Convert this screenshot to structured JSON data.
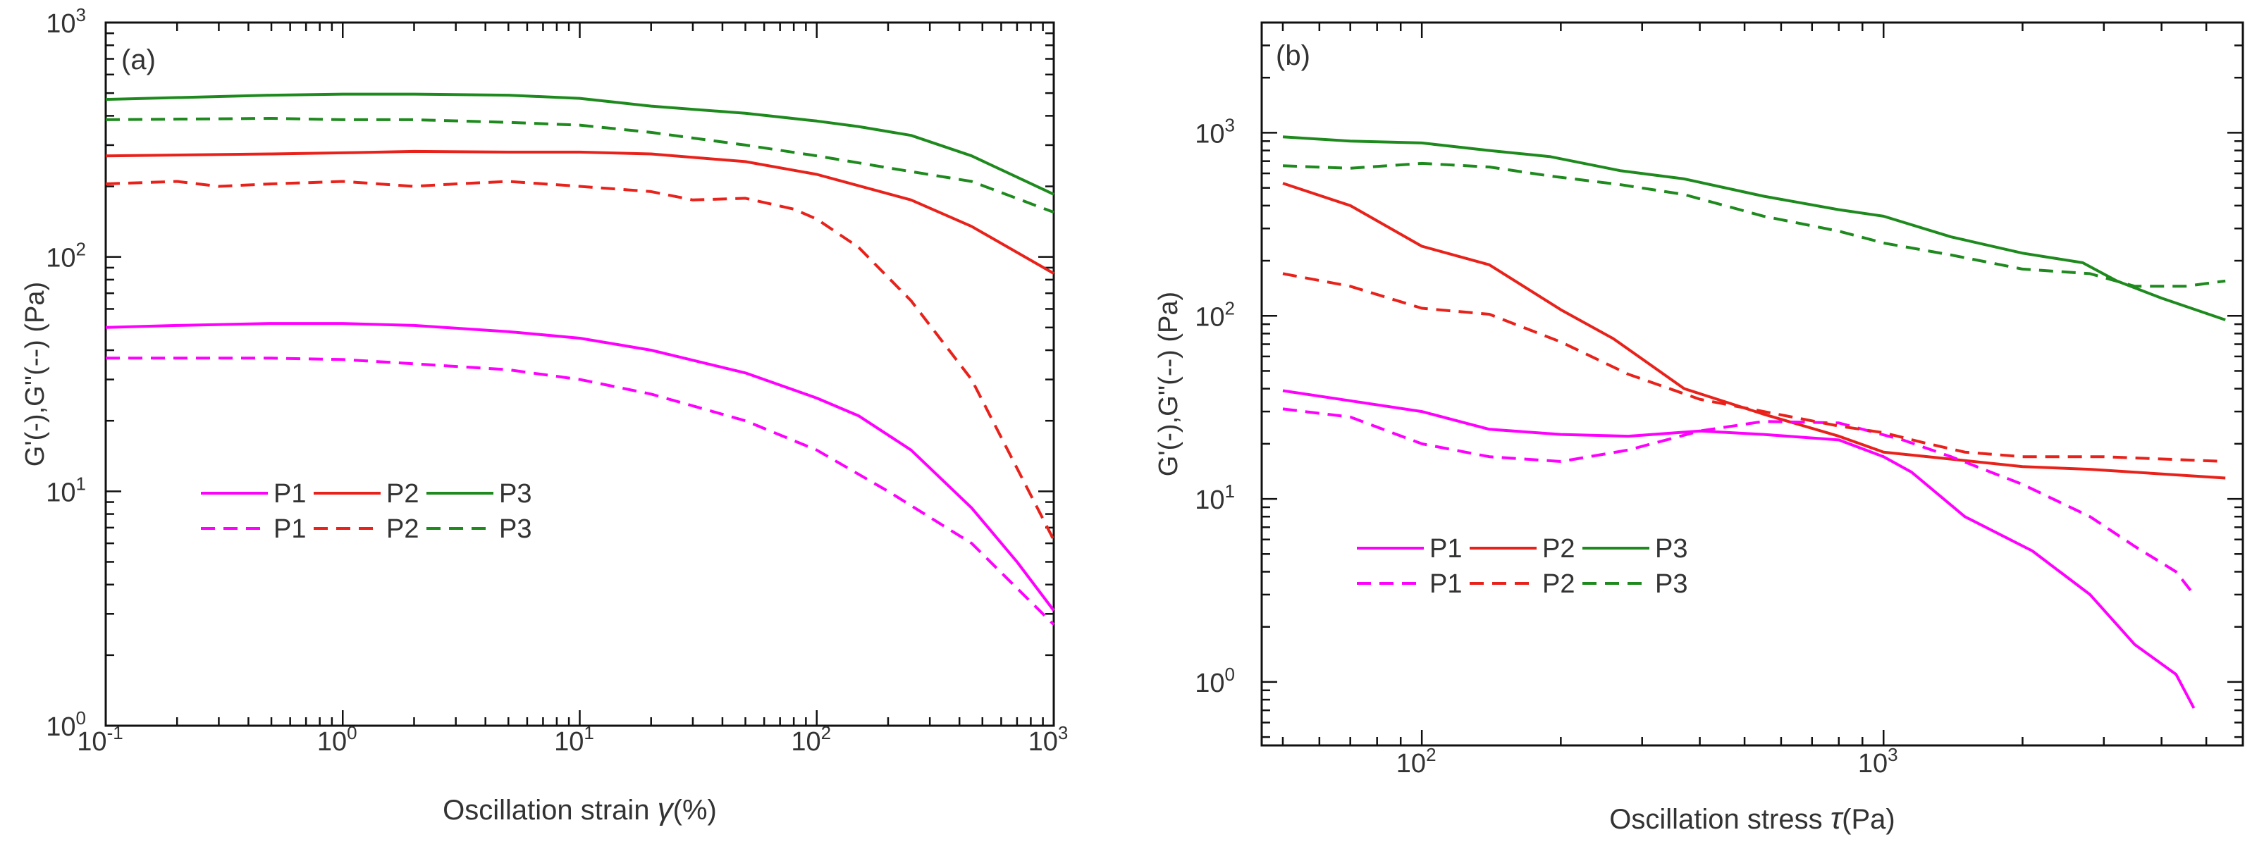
{
  "chart_data": [
    {
      "type": "line",
      "panel_label": "(a)",
      "xlabel_prefix": "Oscillation strain ",
      "xlabel_symbol": "γ",
      "xlabel_suffix": "(%)",
      "ylabel": "G'(-),G''(--) (Pa)",
      "x_scale": "log",
      "y_scale": "log",
      "xlim": [
        0.1,
        1000
      ],
      "ylim": [
        1,
        1000
      ],
      "x_ticks": [
        {
          "value": 0.1,
          "base": "10",
          "exp": "-1"
        },
        {
          "value": 1,
          "base": "10",
          "exp": "0"
        },
        {
          "value": 10,
          "base": "10",
          "exp": "1"
        },
        {
          "value": 100,
          "base": "10",
          "exp": "2"
        },
        {
          "value": 1000,
          "base": "10",
          "exp": "3"
        }
      ],
      "y_ticks": [
        {
          "value": 1,
          "base": "10",
          "exp": "0"
        },
        {
          "value": 10,
          "base": "10",
          "exp": "1"
        },
        {
          "value": 100,
          "base": "10",
          "exp": "2"
        },
        {
          "value": 1000,
          "base": "10",
          "exp": "3"
        }
      ],
      "grid": false,
      "legend_position": "middle-left",
      "legend_rows": [
        [
          "P1",
          "P2",
          "P3"
        ],
        [
          "P1",
          "P2",
          "P3"
        ]
      ],
      "series": [
        {
          "name": "P1",
          "modulus": "G'",
          "color": "#ff00ff",
          "dash": false,
          "x": [
            0.1,
            0.2,
            0.5,
            1,
            2,
            5,
            10,
            20,
            50,
            100,
            150,
            250,
            450,
            700,
            1000
          ],
          "y": [
            50,
            51,
            52,
            52,
            51,
            48,
            45,
            40,
            32,
            25,
            21,
            15,
            8.5,
            5,
            3.1
          ]
        },
        {
          "name": "P2",
          "modulus": "G'",
          "color": "#e8221b",
          "dash": false,
          "x": [
            0.1,
            0.5,
            1,
            2,
            5,
            10,
            20,
            50,
            100,
            250,
            450,
            1000
          ],
          "y": [
            270,
            275,
            278,
            282,
            280,
            280,
            275,
            255,
            225,
            175,
            135,
            85
          ]
        },
        {
          "name": "P3",
          "modulus": "G'",
          "color": "#1e8a1e",
          "dash": false,
          "x": [
            0.1,
            0.5,
            1,
            2,
            5,
            10,
            20,
            50,
            100,
            150,
            250,
            450,
            1000
          ],
          "y": [
            470,
            490,
            495,
            495,
            490,
            475,
            440,
            410,
            380,
            360,
            330,
            270,
            185
          ]
        },
        {
          "name": "P1",
          "modulus": "G''",
          "color": "#ff00ff",
          "dash": true,
          "x": [
            0.1,
            0.5,
            1,
            2,
            5,
            10,
            20,
            50,
            100,
            200,
            450,
            1000
          ],
          "y": [
            37,
            37,
            36.5,
            35,
            33,
            30,
            26,
            20,
            15,
            10,
            6,
            2.7
          ]
        },
        {
          "name": "P2",
          "modulus": "G''",
          "color": "#e8221b",
          "dash": true,
          "x": [
            0.1,
            0.2,
            0.3,
            0.5,
            1,
            2,
            3,
            5,
            10,
            20,
            30,
            50,
            80,
            100,
            150,
            250,
            450,
            1000
          ],
          "y": [
            205,
            210,
            200,
            205,
            210,
            200,
            205,
            210,
            200,
            190,
            175,
            178,
            160,
            145,
            110,
            65,
            30,
            6.2
          ]
        },
        {
          "name": "P3",
          "modulus": "G''",
          "color": "#1e8a1e",
          "dash": true,
          "x": [
            0.1,
            0.5,
            1,
            2,
            5,
            10,
            20,
            50,
            100,
            200,
            450,
            1000
          ],
          "y": [
            385,
            390,
            385,
            385,
            375,
            365,
            340,
            300,
            270,
            240,
            210,
            155
          ]
        }
      ]
    },
    {
      "type": "line",
      "panel_label": "(b)",
      "xlabel_prefix": "Oscillation stress ",
      "xlabel_symbol": "τ",
      "xlabel_suffix": "(Pa)",
      "ylabel": "G'(-),G''(--) (Pa)",
      "x_scale": "log",
      "y_scale": "log",
      "xlim": [
        45,
        6000
      ],
      "ylim": [
        0.45,
        4000
      ],
      "x_ticks": [
        {
          "value": 100,
          "base": "10",
          "exp": "2"
        },
        {
          "value": 1000,
          "base": "10",
          "exp": "3"
        }
      ],
      "y_ticks": [
        {
          "value": 1,
          "base": "10",
          "exp": "0"
        },
        {
          "value": 10,
          "base": "10",
          "exp": "1"
        },
        {
          "value": 100,
          "base": "10",
          "exp": "2"
        },
        {
          "value": 1000,
          "base": "10",
          "exp": "3"
        }
      ],
      "grid": false,
      "legend_position": "bottom-left",
      "legend_rows": [
        [
          "P1",
          "P2",
          "P3"
        ],
        [
          "P1",
          "P2",
          "P3"
        ]
      ],
      "series": [
        {
          "name": "P1",
          "modulus": "G'",
          "color": "#ff00ff",
          "dash": false,
          "x": [
            50,
            100,
            140,
            200,
            280,
            400,
            550,
            800,
            1000,
            1150,
            1500,
            2100,
            2800,
            3500,
            4300,
            4700
          ],
          "y": [
            39,
            30,
            24,
            22.5,
            22,
            23.5,
            22.5,
            21,
            17,
            14,
            8,
            5.2,
            3,
            1.6,
            1.1,
            0.72
          ]
        },
        {
          "name": "P2",
          "modulus": "G'",
          "color": "#e8221b",
          "dash": false,
          "x": [
            50,
            70,
            100,
            140,
            200,
            260,
            370,
            550,
            800,
            1000,
            1400,
            2000,
            2800,
            5500
          ],
          "y": [
            530,
            400,
            240,
            190,
            108,
            75,
            40,
            29,
            22,
            18,
            16.5,
            15,
            14.5,
            13
          ]
        },
        {
          "name": "P3",
          "modulus": "G'",
          "color": "#1e8a1e",
          "dash": false,
          "x": [
            50,
            70,
            100,
            140,
            190,
            270,
            370,
            550,
            800,
            1000,
            1400,
            2000,
            2700,
            3200,
            4000,
            5500
          ],
          "y": [
            950,
            900,
            880,
            800,
            740,
            620,
            560,
            450,
            380,
            350,
            270,
            220,
            195,
            155,
            125,
            95
          ]
        },
        {
          "name": "P1",
          "modulus": "G''",
          "color": "#ff00ff",
          "dash": true,
          "x": [
            50,
            70,
            100,
            140,
            200,
            280,
            400,
            550,
            800,
            1100,
            1400,
            2000,
            2800,
            3500,
            4300,
            4700
          ],
          "y": [
            31,
            28,
            20,
            17,
            16,
            18.5,
            23.5,
            26.5,
            26,
            21,
            17,
            12,
            8,
            5.5,
            4,
            3
          ]
        },
        {
          "name": "P2",
          "modulus": "G''",
          "color": "#e8221b",
          "dash": true,
          "x": [
            50,
            70,
            100,
            140,
            200,
            280,
            400,
            550,
            800,
            1000,
            1200,
            1500,
            2000,
            3000,
            5500
          ],
          "y": [
            170,
            145,
            110,
            102,
            72,
            48,
            35,
            30,
            25,
            23,
            20.5,
            18,
            17,
            17,
            16
          ]
        },
        {
          "name": "P3",
          "modulus": "G''",
          "color": "#1e8a1e",
          "dash": true,
          "x": [
            50,
            70,
            100,
            140,
            190,
            270,
            370,
            550,
            800,
            1000,
            1400,
            2000,
            2800,
            3500,
            4500,
            5500
          ],
          "y": [
            660,
            640,
            680,
            650,
            580,
            520,
            460,
            350,
            290,
            250,
            215,
            180,
            170,
            145,
            145,
            155
          ]
        }
      ]
    }
  ]
}
